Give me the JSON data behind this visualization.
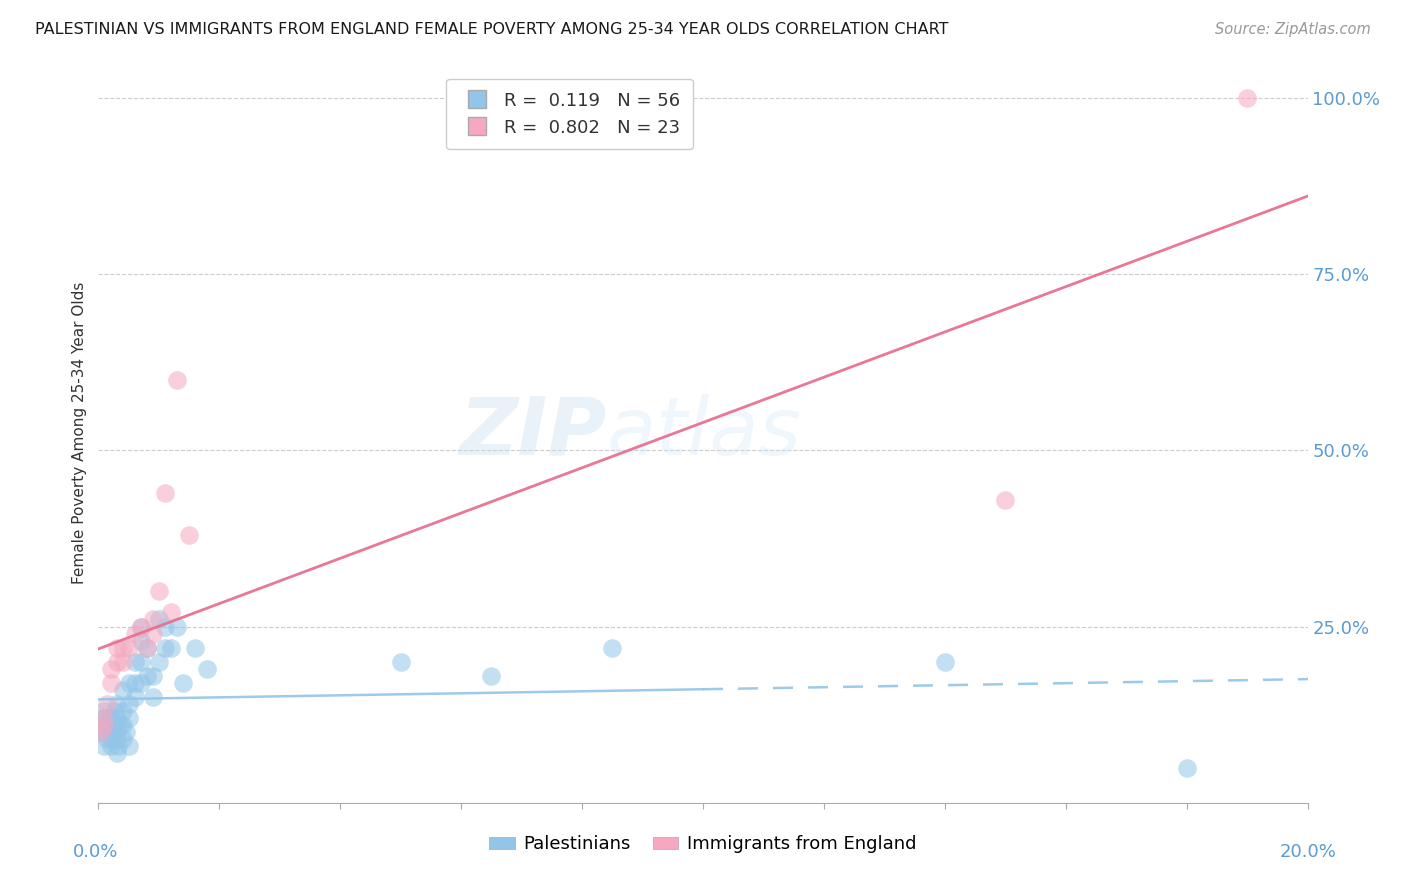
{
  "title": "PALESTINIAN VS IMMIGRANTS FROM ENGLAND FEMALE POVERTY AMONG 25-34 YEAR OLDS CORRELATION CHART",
  "source": "Source: ZipAtlas.com",
  "ylabel": "Female Poverty Among 25-34 Year Olds",
  "ytick_labels": [
    "100.0%",
    "75.0%",
    "50.0%",
    "25.0%"
  ],
  "ytick_values": [
    1.0,
    0.75,
    0.5,
    0.25
  ],
  "R_blue": 0.119,
  "N_blue": 56,
  "R_pink": 0.802,
  "N_pink": 23,
  "blue_color": "#92C5E8",
  "pink_color": "#F5A8C0",
  "blue_line_color": "#92C5E8",
  "pink_line_color": "#E87090",
  "title_color": "#1a1a1a",
  "axis_label_color": "#5B9BD5",
  "watermark_zip": "ZIP",
  "watermark_atlas": "atlas",
  "blue_x": [
    0.0005,
    0.0008,
    0.001,
    0.001,
    0.001,
    0.0012,
    0.0015,
    0.0015,
    0.0018,
    0.002,
    0.002,
    0.002,
    0.0022,
    0.0025,
    0.0025,
    0.003,
    0.003,
    0.003,
    0.003,
    0.003,
    0.0032,
    0.0035,
    0.004,
    0.004,
    0.004,
    0.004,
    0.0045,
    0.005,
    0.005,
    0.005,
    0.005,
    0.006,
    0.006,
    0.006,
    0.007,
    0.007,
    0.007,
    0.007,
    0.008,
    0.008,
    0.009,
    0.009,
    0.01,
    0.01,
    0.011,
    0.011,
    0.012,
    0.013,
    0.014,
    0.016,
    0.018,
    0.05,
    0.065,
    0.085,
    0.14,
    0.18
  ],
  "blue_y": [
    0.1,
    0.12,
    0.08,
    0.11,
    0.13,
    0.1,
    0.09,
    0.12,
    0.11,
    0.08,
    0.1,
    0.12,
    0.09,
    0.11,
    0.13,
    0.07,
    0.09,
    0.1,
    0.12,
    0.14,
    0.08,
    0.11,
    0.09,
    0.11,
    0.13,
    0.16,
    0.1,
    0.08,
    0.12,
    0.14,
    0.17,
    0.15,
    0.17,
    0.2,
    0.17,
    0.2,
    0.23,
    0.25,
    0.18,
    0.22,
    0.15,
    0.18,
    0.2,
    0.26,
    0.22,
    0.25,
    0.22,
    0.25,
    0.17,
    0.22,
    0.19,
    0.2,
    0.18,
    0.22,
    0.2,
    0.05
  ],
  "pink_x": [
    0.0005,
    0.0008,
    0.001,
    0.0015,
    0.002,
    0.002,
    0.003,
    0.003,
    0.004,
    0.004,
    0.005,
    0.006,
    0.007,
    0.008,
    0.009,
    0.009,
    0.01,
    0.011,
    0.012,
    0.013,
    0.015,
    0.15,
    0.19
  ],
  "pink_y": [
    0.1,
    0.12,
    0.11,
    0.14,
    0.17,
    0.19,
    0.2,
    0.22,
    0.2,
    0.22,
    0.22,
    0.24,
    0.25,
    0.22,
    0.24,
    0.26,
    0.3,
    0.44,
    0.27,
    0.6,
    0.38,
    0.43,
    1.0
  ],
  "xlim": [
    0,
    0.2
  ],
  "ylim": [
    0.0,
    1.05
  ]
}
